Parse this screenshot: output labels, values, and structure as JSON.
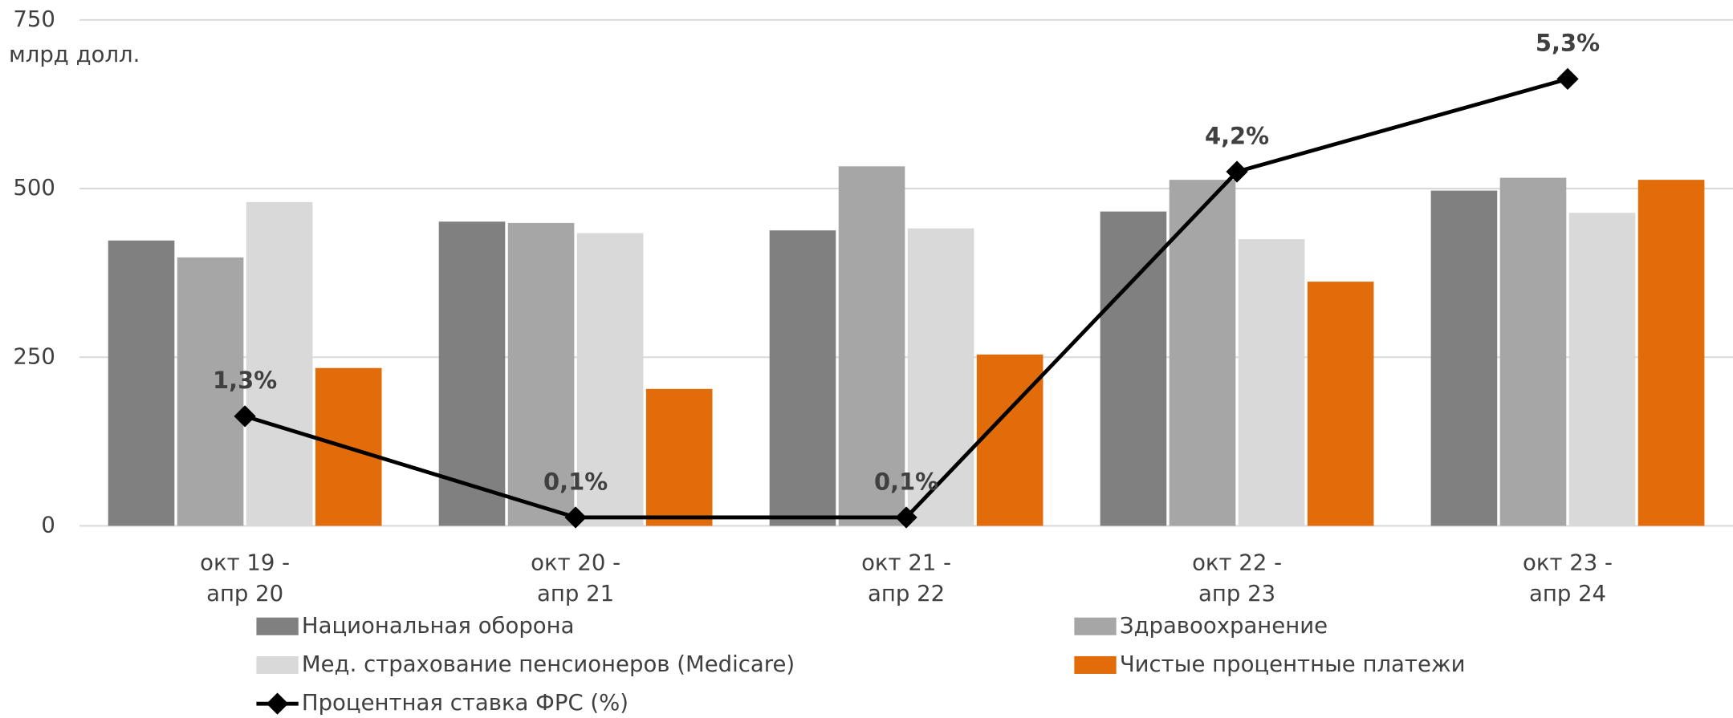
{
  "chart_data": {
    "type": "bar",
    "y_label": "млрд долл.",
    "categories": [
      "окт 19 -\nапр 20",
      "окт 20 -\nапр 21",
      "окт 21 -\nапр 22",
      "окт 22 -\nапр 23",
      "окт 23 -\nапр 24"
    ],
    "series": [
      {
        "name": "Национальная оборона",
        "color": "#808080",
        "values": [
          423,
          451,
          438,
          466,
          497
        ]
      },
      {
        "name": "Здравоохранение",
        "color": "#a6a6a6",
        "values": [
          398,
          449,
          533,
          513,
          516
        ]
      },
      {
        "name": "Мед. страхование пенсионеров (Medicare)",
        "color": "#d9d9d9",
        "values": [
          480,
          434,
          441,
          425,
          464
        ]
      },
      {
        "name": "Чистые процентные платежи",
        "color": "#e36c0a",
        "values": [
          234,
          203,
          254,
          362,
          513
        ]
      },
      {
        "name": "Процентная ставка ФРС (%)",
        "color": "#000000",
        "type": "line",
        "axis": "y2",
        "values": [
          1.3,
          0.1,
          0.1,
          4.2,
          5.3
        ],
        "value_labels": [
          "1,3%",
          "0,1%",
          "0,1%",
          "4,2%",
          "5,3%"
        ]
      }
    ],
    "ylim": [
      0,
      750
    ],
    "yticks": [
      0,
      250,
      500,
      750
    ],
    "y2lim": [
      0,
      6
    ],
    "grid": true
  }
}
